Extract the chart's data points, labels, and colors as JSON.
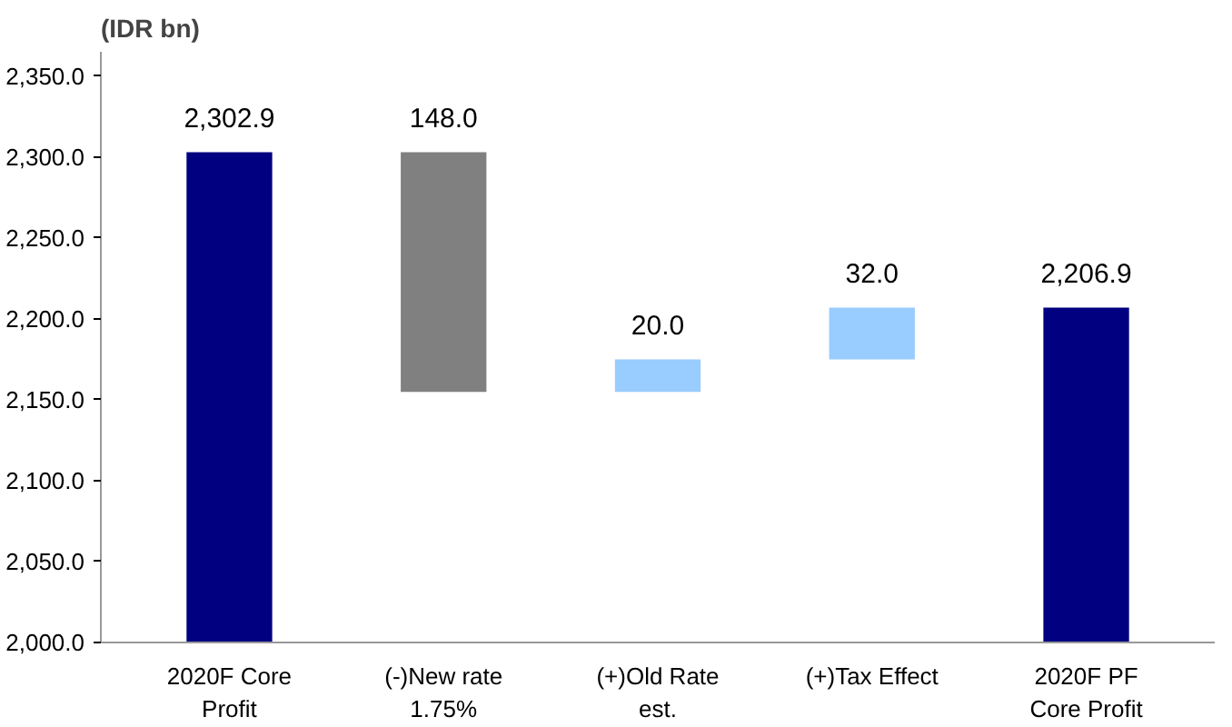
{
  "chart_data": {
    "type": "bar",
    "ylabel": "(IDR bn)",
    "categories": [
      "2020F Core\nProfit",
      "(-)New rate\n1.75%",
      "(+)Old Rate\nest.",
      "(+)Tax Effect",
      "2020F PF\nCore Profit"
    ],
    "values": [
      2302.9,
      148.0,
      20.0,
      32.0,
      2206.9
    ],
    "base": [
      null,
      2154.9,
      2154.9,
      2174.9,
      null
    ],
    "colors": [
      "#000080",
      "#808080",
      "#99ccff",
      "#99ccff",
      "#000080"
    ],
    "value_labels": [
      "2,302.9",
      "148.0",
      "20.0",
      "32.0",
      "2,206.9"
    ],
    "ylim": [
      2000,
      2365
    ],
    "yticks": [
      {
        "value": 2000,
        "label": "2,000.0"
      },
      {
        "value": 2050,
        "label": "2,050.0"
      },
      {
        "value": 2100,
        "label": "2,100.0"
      },
      {
        "value": 2150,
        "label": "2,150.0"
      },
      {
        "value": 2200,
        "label": "2,200.0"
      },
      {
        "value": 2250,
        "label": "2,250.0"
      },
      {
        "value": 2300,
        "label": "2,300.0"
      },
      {
        "value": 2350,
        "label": "2,350.0"
      }
    ],
    "grid": false
  }
}
